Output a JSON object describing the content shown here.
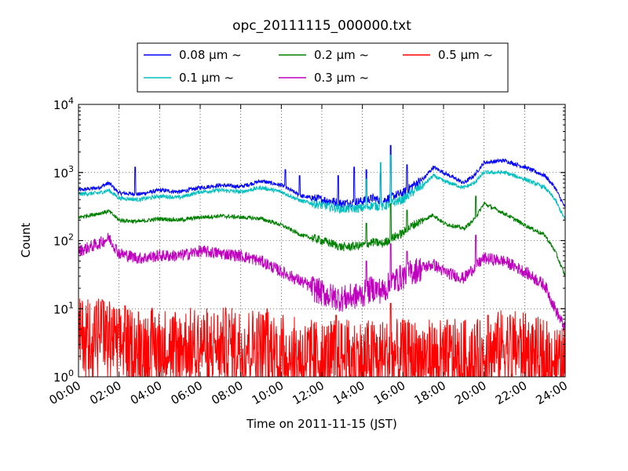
{
  "chart_data": {
    "type": "line",
    "title": "opc_20111115_000000.txt",
    "xlabel": "Time on 2011-11-15 (JST)",
    "ylabel": "Count",
    "xlim": [
      "00:00",
      "24:00"
    ],
    "ylim": [
      1,
      10000
    ],
    "yscale": "log",
    "grid": true,
    "legend_position": "top",
    "x_ticks": [
      "00:00",
      "02:00",
      "04:00",
      "06:00",
      "08:00",
      "10:00",
      "12:00",
      "14:00",
      "16:00",
      "18:00",
      "20:00",
      "22:00",
      "24:00"
    ],
    "y_ticks": [
      {
        "value": 1,
        "base": "10",
        "exp": "0"
      },
      {
        "value": 10,
        "base": "10",
        "exp": "1"
      },
      {
        "value": 100,
        "base": "10",
        "exp": "2"
      },
      {
        "value": 1000,
        "base": "10",
        "exp": "3"
      },
      {
        "value": 10000,
        "base": "10",
        "exp": "4"
      }
    ],
    "series": [
      {
        "name": "0.08 μm ~",
        "color": "#0000ff",
        "points": [
          [
            0,
            550
          ],
          [
            1,
            600
          ],
          [
            1.5,
            700
          ],
          [
            2,
            500
          ],
          [
            3,
            480
          ],
          [
            4,
            550
          ],
          [
            5,
            520
          ],
          [
            6,
            600
          ],
          [
            7,
            650
          ],
          [
            8,
            620
          ],
          [
            9,
            750
          ],
          [
            10,
            650
          ],
          [
            11,
            450
          ],
          [
            12,
            400
          ],
          [
            12.5,
            380
          ],
          [
            13,
            350
          ],
          [
            14,
            380
          ],
          [
            14.5,
            420
          ],
          [
            15,
            380
          ],
          [
            15.5,
            450
          ],
          [
            16,
            500
          ],
          [
            16.5,
            650
          ],
          [
            17,
            800
          ],
          [
            17.5,
            1200
          ],
          [
            18,
            1000
          ],
          [
            19,
            700
          ],
          [
            19.5,
            900
          ],
          [
            20,
            1400
          ],
          [
            21,
            1500
          ],
          [
            22,
            1200
          ],
          [
            23,
            900
          ],
          [
            23.5,
            600
          ],
          [
            24,
            300
          ]
        ],
        "spikes": [
          [
            2.8,
            1200
          ],
          [
            10.2,
            1100
          ],
          [
            10.9,
            900
          ],
          [
            12.8,
            900
          ],
          [
            13.6,
            1200
          ],
          [
            14.2,
            1100
          ],
          [
            14.9,
            1000
          ],
          [
            15.4,
            2500
          ],
          [
            16.2,
            1300
          ]
        ]
      },
      {
        "name": "0.1 μm ~",
        "color": "#00bfbf",
        "points": [
          [
            0,
            480
          ],
          [
            1,
            500
          ],
          [
            1.5,
            550
          ],
          [
            2,
            420
          ],
          [
            3,
            400
          ],
          [
            4,
            450
          ],
          [
            5,
            430
          ],
          [
            6,
            520
          ],
          [
            7,
            550
          ],
          [
            8,
            520
          ],
          [
            9,
            600
          ],
          [
            10,
            520
          ],
          [
            11,
            380
          ],
          [
            12,
            330
          ],
          [
            12.5,
            310
          ],
          [
            13,
            290
          ],
          [
            14,
            300
          ],
          [
            14.5,
            330
          ],
          [
            15,
            310
          ],
          [
            15.5,
            360
          ],
          [
            16,
            400
          ],
          [
            16.5,
            520
          ],
          [
            17,
            650
          ],
          [
            17.5,
            900
          ],
          [
            18,
            750
          ],
          [
            19,
            600
          ],
          [
            19.5,
            700
          ],
          [
            20,
            1000
          ],
          [
            21,
            1000
          ],
          [
            22,
            800
          ],
          [
            23,
            600
          ],
          [
            23.5,
            400
          ],
          [
            24,
            200
          ]
        ],
        "spikes": [
          [
            14.2,
            800
          ],
          [
            14.9,
            1400
          ],
          [
            15.4,
            1800
          ]
        ]
      },
      {
        "name": "0.2 μm ~",
        "color": "#008000",
        "points": [
          [
            0,
            220
          ],
          [
            1,
            250
          ],
          [
            1.5,
            270
          ],
          [
            2,
            200
          ],
          [
            3,
            190
          ],
          [
            4,
            210
          ],
          [
            5,
            200
          ],
          [
            6,
            220
          ],
          [
            7,
            230
          ],
          [
            8,
            220
          ],
          [
            9,
            210
          ],
          [
            10,
            170
          ],
          [
            11,
            120
          ],
          [
            12,
            100
          ],
          [
            12.5,
            90
          ],
          [
            13,
            80
          ],
          [
            14,
            85
          ],
          [
            14.5,
            95
          ],
          [
            15,
            90
          ],
          [
            15.5,
            110
          ],
          [
            16,
            130
          ],
          [
            16.5,
            170
          ],
          [
            17,
            200
          ],
          [
            17.5,
            240
          ],
          [
            18,
            180
          ],
          [
            19,
            150
          ],
          [
            19.5,
            200
          ],
          [
            20,
            350
          ],
          [
            21,
            250
          ],
          [
            22,
            170
          ],
          [
            23,
            120
          ],
          [
            23.5,
            70
          ],
          [
            24,
            30
          ]
        ],
        "spikes": [
          [
            14.2,
            180
          ],
          [
            15.4,
            350
          ],
          [
            16.2,
            280
          ],
          [
            19.6,
            450
          ]
        ]
      },
      {
        "name": "0.3 μm ~",
        "color": "#bf00bf",
        "points": [
          [
            0,
            70
          ],
          [
            1,
            90
          ],
          [
            1.5,
            110
          ],
          [
            2,
            65
          ],
          [
            3,
            55
          ],
          [
            4,
            60
          ],
          [
            5,
            60
          ],
          [
            6,
            70
          ],
          [
            7,
            65
          ],
          [
            8,
            60
          ],
          [
            9,
            50
          ],
          [
            10,
            35
          ],
          [
            11,
            25
          ],
          [
            12,
            17
          ],
          [
            12.5,
            15
          ],
          [
            13,
            14
          ],
          [
            14,
            16
          ],
          [
            14.5,
            20
          ],
          [
            15,
            18
          ],
          [
            15.5,
            25
          ],
          [
            16,
            30
          ],
          [
            16.5,
            35
          ],
          [
            17,
            40
          ],
          [
            17.5,
            45
          ],
          [
            18,
            35
          ],
          [
            19,
            28
          ],
          [
            19.5,
            40
          ],
          [
            20,
            55
          ],
          [
            21,
            50
          ],
          [
            22,
            35
          ],
          [
            23,
            22
          ],
          [
            23.5,
            10
          ],
          [
            24,
            5
          ]
        ],
        "spikes": [
          [
            14.2,
            50
          ],
          [
            15.4,
            90
          ],
          [
            16.2,
            70
          ],
          [
            19.6,
            120
          ]
        ]
      },
      {
        "name": "0.5 μm ~",
        "color": "#ff0000",
        "points": [
          [
            0,
            4
          ],
          [
            1,
            5
          ],
          [
            2,
            3
          ],
          [
            3,
            3
          ],
          [
            4,
            3
          ],
          [
            5,
            3
          ],
          [
            6,
            3
          ],
          [
            7,
            3
          ],
          [
            8,
            3
          ],
          [
            9,
            3
          ],
          [
            10,
            2.5
          ],
          [
            11,
            2
          ],
          [
            12,
            2
          ],
          [
            13,
            2
          ],
          [
            14,
            2
          ],
          [
            15,
            2
          ],
          [
            16,
            2
          ],
          [
            17,
            2
          ],
          [
            18,
            2
          ],
          [
            19,
            2
          ],
          [
            20,
            2
          ],
          [
            21,
            3
          ],
          [
            22,
            2.5
          ],
          [
            23,
            2
          ],
          [
            24,
            1.5
          ]
        ],
        "spikes": [
          [
            1.2,
            13
          ],
          [
            2.3,
            11
          ],
          [
            9.3,
            10
          ],
          [
            12.7,
            8
          ],
          [
            15.4,
            12
          ],
          [
            20.2,
            8
          ]
        ]
      }
    ]
  }
}
